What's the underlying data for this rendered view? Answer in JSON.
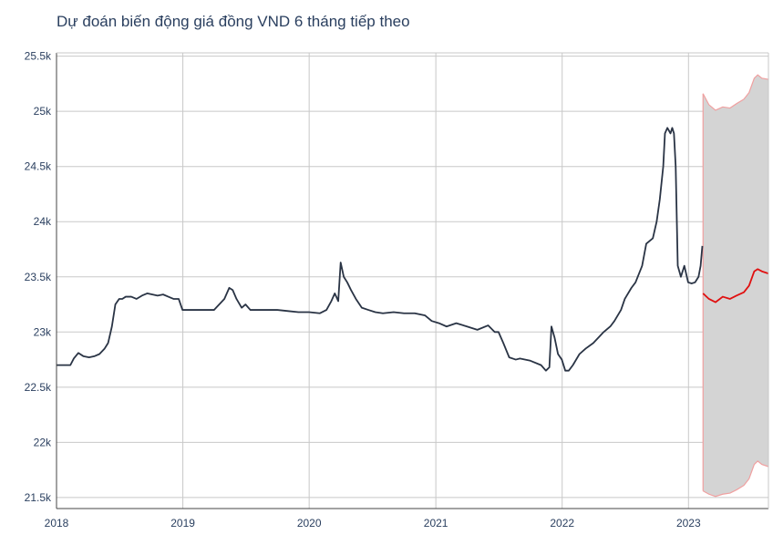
{
  "chart_data": {
    "type": "line",
    "title": "Dự đoán biến động giá đồng VND 6 tháng tiếp theo",
    "xlabel": "",
    "ylabel": "",
    "xlim": [
      "2018-01-01",
      "2023-08-20"
    ],
    "ylim": [
      21400,
      25530
    ],
    "grid": true,
    "legend": "none",
    "x_ticks": [
      {
        "value": "2018-01-01",
        "label": "2018"
      },
      {
        "value": "2019-01-01",
        "label": "2019"
      },
      {
        "value": "2020-01-01",
        "label": "2020"
      },
      {
        "value": "2021-01-01",
        "label": "2021"
      },
      {
        "value": "2022-01-01",
        "label": "2022"
      },
      {
        "value": "2023-01-01",
        "label": "2023"
      }
    ],
    "y_ticks": [
      {
        "value": 21500,
        "label": "21.5k"
      },
      {
        "value": 22000,
        "label": "22k"
      },
      {
        "value": 22500,
        "label": "22.5k"
      },
      {
        "value": 23000,
        "label": "23k"
      },
      {
        "value": 23500,
        "label": "23.5k"
      },
      {
        "value": 24000,
        "label": "24k"
      },
      {
        "value": 24500,
        "label": "24.5k"
      },
      {
        "value": 25000,
        "label": "25k"
      },
      {
        "value": 25500,
        "label": "25.5k"
      }
    ],
    "colors": {
      "historical": "#2a3445",
      "forecast": "#e01010",
      "band_fill": "#d4d4d4",
      "band_edge": "#f0a0a0",
      "grid": "#c8c8c8"
    },
    "series": [
      {
        "values_kind": "historical",
        "x": [
          "2018-01-01",
          "2018-02-10",
          "2018-02-20",
          "2018-03-05",
          "2018-03-20",
          "2018-04-05",
          "2018-04-20",
          "2018-05-05",
          "2018-05-20",
          "2018-05-30",
          "2018-06-10",
          "2018-06-20",
          "2018-07-01",
          "2018-07-10",
          "2018-07-20",
          "2018-08-05",
          "2018-08-20",
          "2018-09-05",
          "2018-09-20",
          "2018-10-05",
          "2018-10-20",
          "2018-11-05",
          "2018-11-20",
          "2018-12-05",
          "2018-12-20",
          "2018-12-31",
          "2019-02-01",
          "2019-03-01",
          "2019-04-01",
          "2019-05-01",
          "2019-05-15",
          "2019-05-25",
          "2019-06-05",
          "2019-06-20",
          "2019-07-01",
          "2019-07-15",
          "2019-08-01",
          "2019-09-01",
          "2019-10-01",
          "2019-11-01",
          "2019-12-01",
          "2020-01-01",
          "2020-02-01",
          "2020-02-20",
          "2020-03-05",
          "2020-03-15",
          "2020-03-25",
          "2020-04-01",
          "2020-04-10",
          "2020-04-20",
          "2020-05-01",
          "2020-05-15",
          "2020-06-01",
          "2020-06-20",
          "2020-07-10",
          "2020-08-01",
          "2020-09-01",
          "2020-10-01",
          "2020-11-01",
          "2020-12-01",
          "2020-12-20",
          "2021-01-10",
          "2021-02-01",
          "2021-03-01",
          "2021-04-01",
          "2021-05-01",
          "2021-06-01",
          "2021-06-20",
          "2021-07-01",
          "2021-07-15",
          "2021-08-01",
          "2021-08-20",
          "2021-09-01",
          "2021-10-01",
          "2021-11-01",
          "2021-11-15",
          "2021-11-25",
          "2021-12-01",
          "2021-12-10",
          "2021-12-20",
          "2021-12-31",
          "2022-01-10",
          "2022-01-20",
          "2022-02-01",
          "2022-02-20",
          "2022-03-10",
          "2022-04-01",
          "2022-05-01",
          "2022-05-20",
          "2022-06-01",
          "2022-06-20",
          "2022-07-01",
          "2022-07-20",
          "2022-08-01",
          "2022-08-20",
          "2022-09-01",
          "2022-09-20",
          "2022-10-01",
          "2022-10-10",
          "2022-10-20",
          "2022-10-25",
          "2022-11-01",
          "2022-11-10",
          "2022-11-15",
          "2022-11-20",
          "2022-11-25",
          "2022-12-01",
          "2022-12-10",
          "2022-12-20",
          "2022-12-31",
          "2023-01-10",
          "2023-01-20",
          "2023-01-30",
          "2023-02-05",
          "2023-02-10"
        ],
        "y": [
          22700,
          22700,
          22760,
          22810,
          22780,
          22770,
          22780,
          22800,
          22850,
          22900,
          23050,
          23250,
          23300,
          23300,
          23320,
          23320,
          23300,
          23330,
          23350,
          23340,
          23330,
          23340,
          23320,
          23300,
          23300,
          23200,
          23200,
          23200,
          23200,
          23300,
          23400,
          23380,
          23300,
          23220,
          23250,
          23200,
          23200,
          23200,
          23200,
          23190,
          23180,
          23180,
          23170,
          23200,
          23280,
          23350,
          23280,
          23630,
          23500,
          23450,
          23380,
          23300,
          23220,
          23200,
          23180,
          23170,
          23180,
          23170,
          23170,
          23150,
          23100,
          23080,
          23050,
          23080,
          23050,
          23020,
          23060,
          23000,
          23000,
          22900,
          22770,
          22750,
          22760,
          22740,
          22700,
          22650,
          22680,
          23050,
          22950,
          22800,
          22750,
          22650,
          22650,
          22700,
          22800,
          22850,
          22900,
          23000,
          23050,
          23100,
          23200,
          23300,
          23400,
          23450,
          23600,
          23800,
          23850,
          24000,
          24200,
          24500,
          24800,
          24850,
          24800,
          24850,
          24800,
          24500,
          23600,
          23500,
          23600,
          23450,
          23440,
          23450,
          23500,
          23600,
          23780
        ]
      },
      {
        "values_kind": "forecast",
        "x": [
          "2023-02-12",
          "2023-03-01",
          "2023-03-20",
          "2023-04-10",
          "2023-05-01",
          "2023-05-20",
          "2023-06-10",
          "2023-06-25",
          "2023-07-10",
          "2023-07-20",
          "2023-08-01",
          "2023-08-20"
        ],
        "y": [
          23350,
          23300,
          23270,
          23320,
          23300,
          23330,
          23360,
          23420,
          23550,
          23570,
          23550,
          23530
        ]
      },
      {
        "values_kind": "upper_bound",
        "x": [
          "2023-02-12",
          "2023-03-01",
          "2023-03-20",
          "2023-04-10",
          "2023-05-01",
          "2023-05-20",
          "2023-06-10",
          "2023-06-25",
          "2023-07-10",
          "2023-07-20",
          "2023-08-01",
          "2023-08-20"
        ],
        "y": [
          25160,
          25060,
          25010,
          25040,
          25030,
          25070,
          25110,
          25170,
          25300,
          25330,
          25300,
          25290
        ]
      },
      {
        "values_kind": "lower_bound",
        "x": [
          "2023-02-12",
          "2023-03-01",
          "2023-03-20",
          "2023-04-10",
          "2023-05-01",
          "2023-05-20",
          "2023-06-10",
          "2023-06-25",
          "2023-07-10",
          "2023-07-20",
          "2023-08-01",
          "2023-08-20"
        ],
        "y": [
          21560,
          21530,
          21510,
          21530,
          21540,
          21570,
          21610,
          21670,
          21800,
          21830,
          21800,
          21780
        ]
      }
    ]
  }
}
